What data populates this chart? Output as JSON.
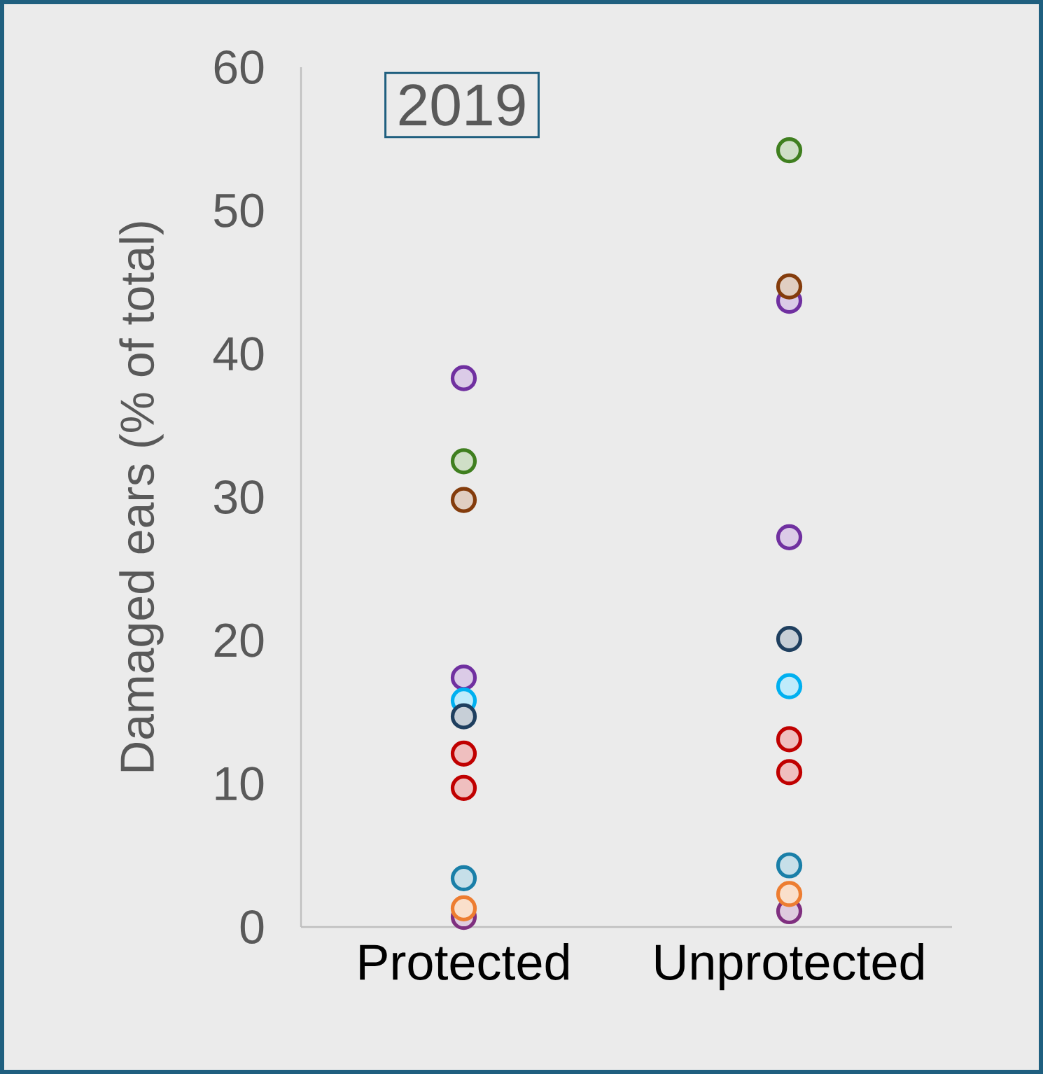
{
  "chart_data": {
    "type": "scatter",
    "title": "2019",
    "ylabel": "Damaged ears (% of total)",
    "categories": [
      "Protected",
      "Unprotected"
    ],
    "ylim": [
      0,
      60
    ],
    "yticks": [
      0,
      10,
      20,
      30,
      40,
      50,
      60
    ],
    "marker": "circle",
    "series": [
      {
        "color": "#7030a0",
        "values": [
          38.3,
          43.7
        ]
      },
      {
        "color": "#3f7f1f",
        "values": [
          32.5,
          54.2
        ]
      },
      {
        "color": "#843c0c",
        "values": [
          29.8,
          44.7
        ]
      },
      {
        "color": "#7030a0",
        "values": [
          17.4,
          27.2
        ]
      },
      {
        "color": "#00b0f0",
        "values": [
          15.8,
          16.8
        ]
      },
      {
        "color": "#1f3f5f",
        "values": [
          14.7,
          20.1
        ]
      },
      {
        "color": "#c00000",
        "values": [
          12.1,
          10.8
        ]
      },
      {
        "color": "#c00000",
        "values": [
          9.7,
          13.1
        ]
      },
      {
        "color": "#1a7fa8",
        "values": [
          3.4,
          4.3
        ]
      },
      {
        "color": "#1f5f7f",
        "values": [
          null,
          null
        ]
      },
      {
        "color": "#7f2f7f",
        "values": [
          0.7,
          1.1
        ]
      },
      {
        "color": "#ed7d31",
        "values": [
          1.3,
          2.3
        ]
      }
    ]
  }
}
